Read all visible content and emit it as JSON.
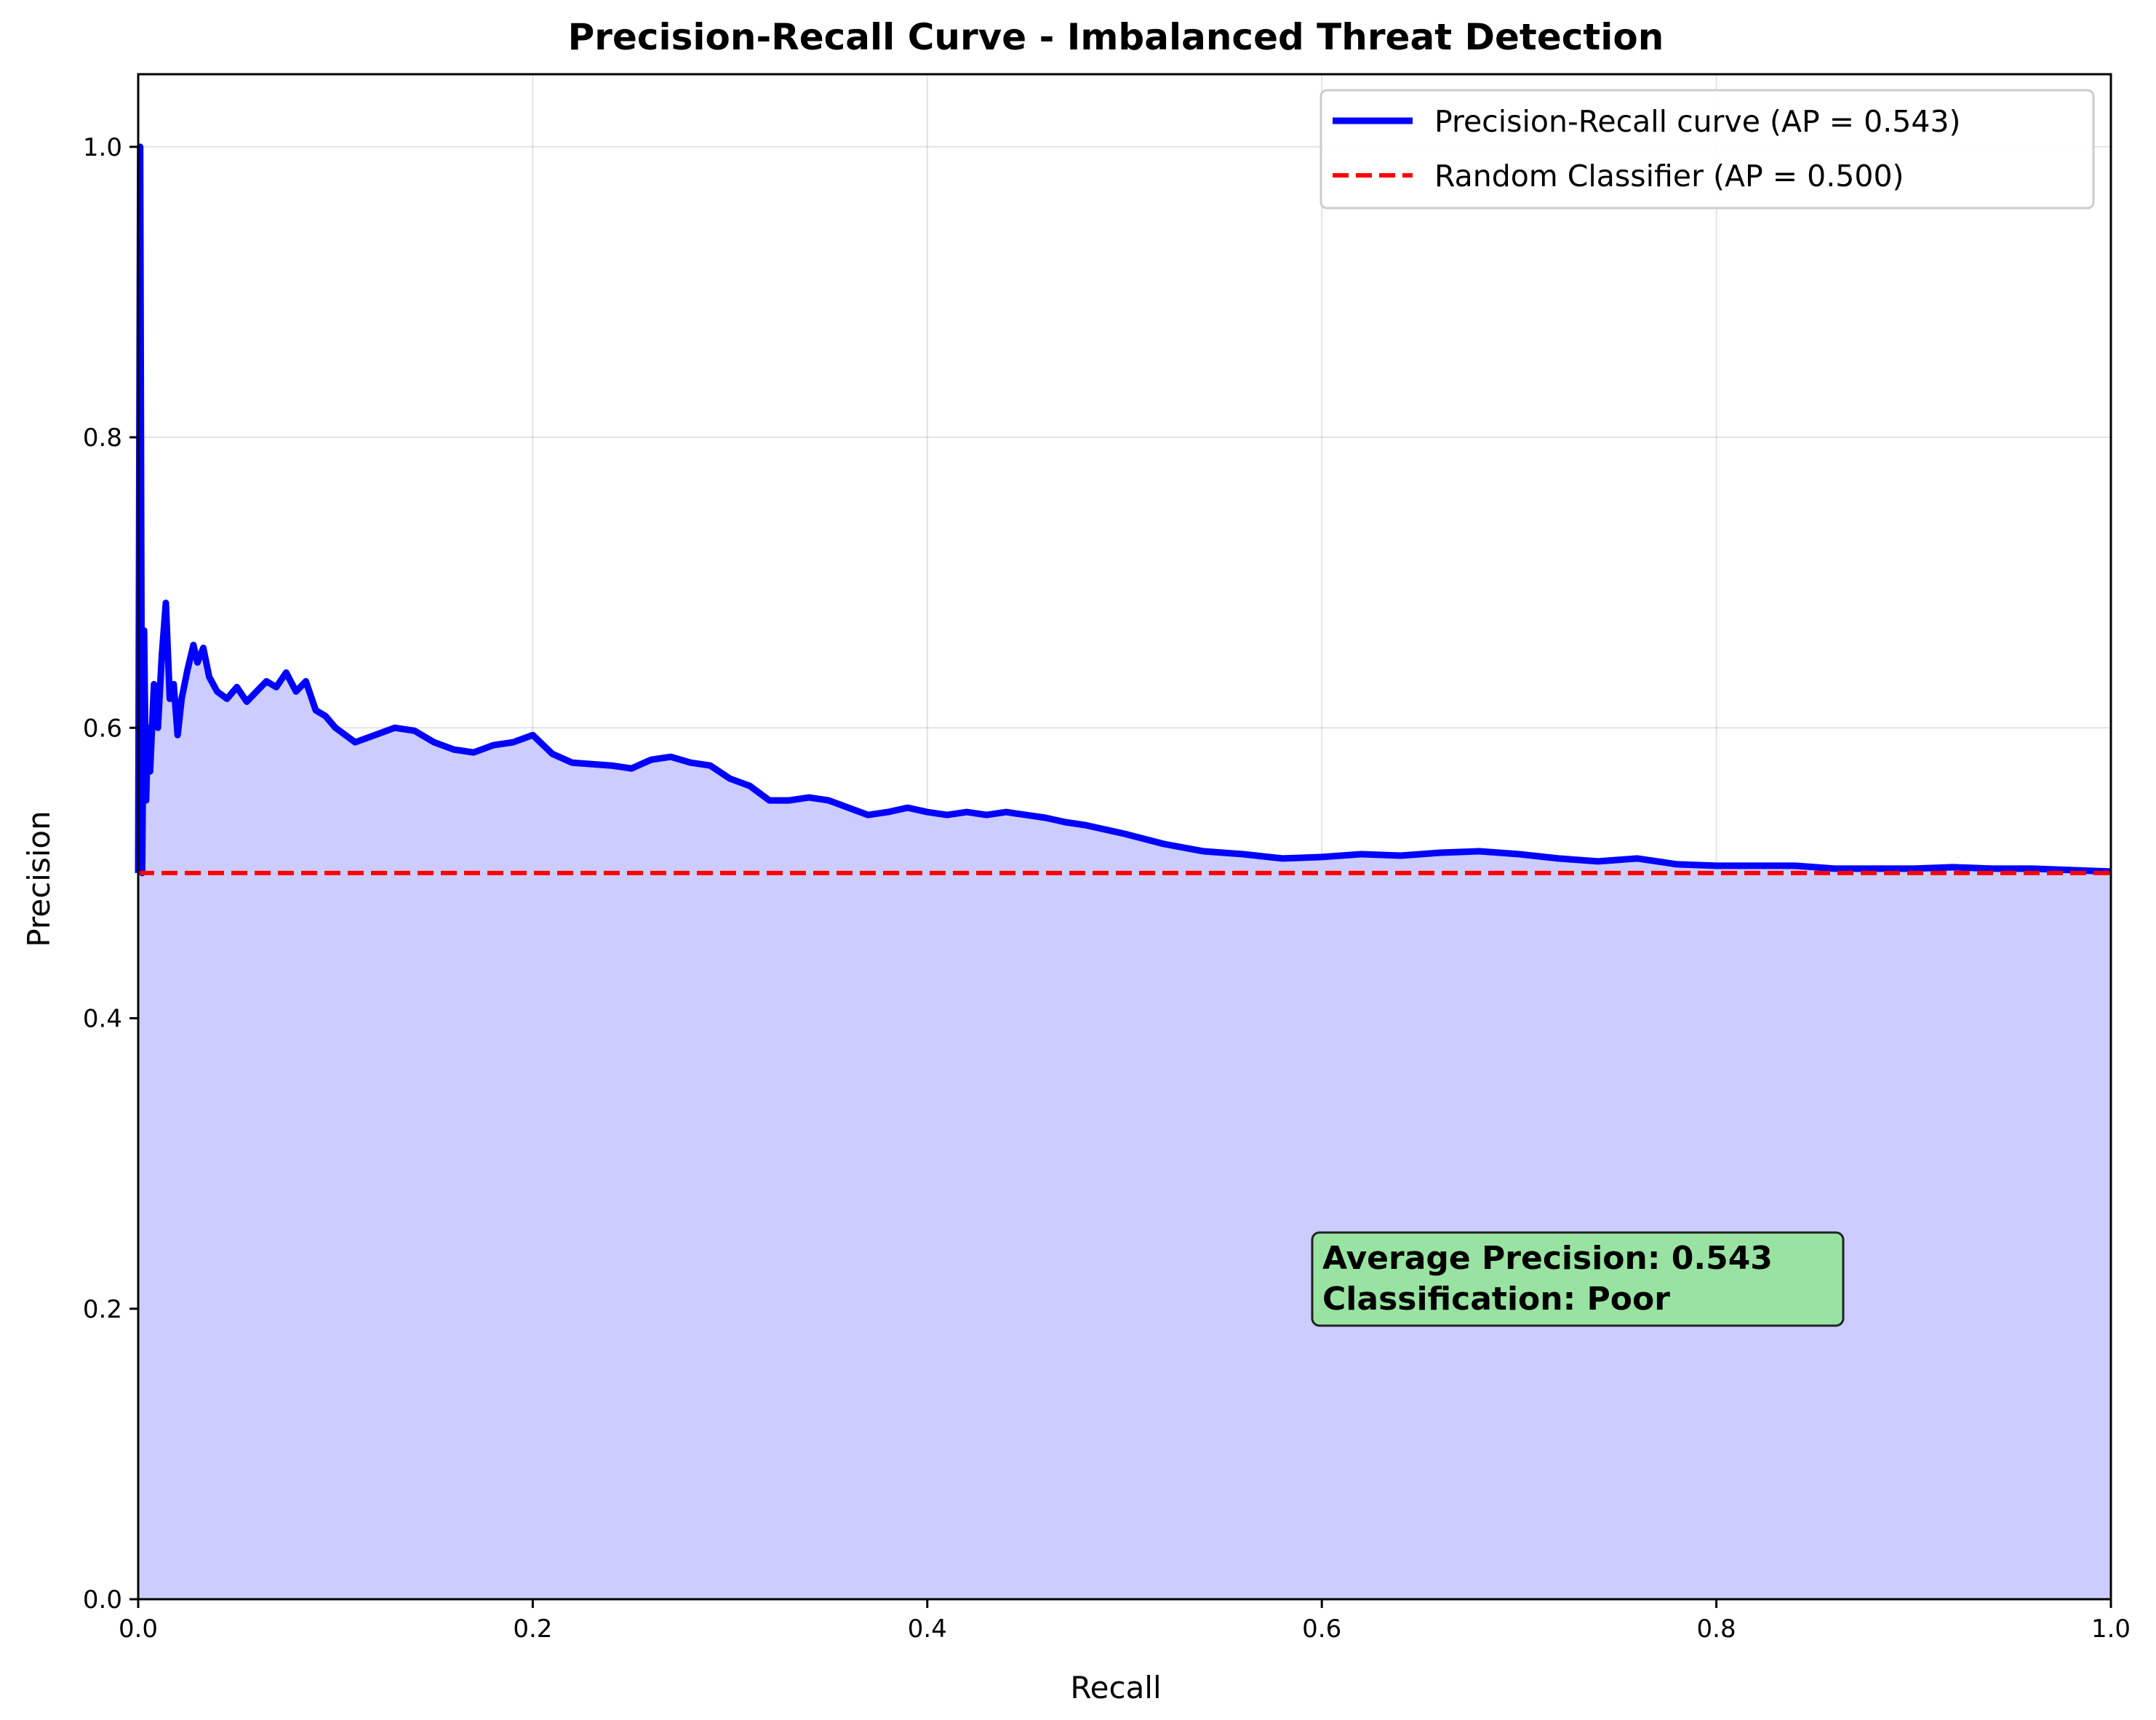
{
  "chart_data": {
    "type": "line",
    "title": "Precision-Recall Curve - Imbalanced Threat Detection",
    "xlabel": "Recall",
    "ylabel": "Precision",
    "xlim": [
      0.0,
      1.0
    ],
    "ylim": [
      0.0,
      1.05
    ],
    "xticks": [
      "0.0",
      "0.2",
      "0.4",
      "0.6",
      "0.8",
      "1.0"
    ],
    "yticks": [
      "0.0",
      "0.2",
      "0.4",
      "0.6",
      "0.8",
      "1.0"
    ],
    "grid": true,
    "legend_position": "top-right",
    "series": [
      {
        "name": "Precision-Recall curve (AP = 0.543)",
        "color": "#0000ff",
        "style": "solid",
        "fill_color": "#ccccff",
        "x": [
          0.0,
          0.001,
          0.002,
          0.003,
          0.004,
          0.005,
          0.006,
          0.008,
          0.01,
          0.012,
          0.014,
          0.016,
          0.018,
          0.02,
          0.022,
          0.025,
          0.028,
          0.03,
          0.033,
          0.036,
          0.04,
          0.045,
          0.05,
          0.055,
          0.06,
          0.065,
          0.07,
          0.075,
          0.08,
          0.085,
          0.09,
          0.095,
          0.1,
          0.11,
          0.12,
          0.13,
          0.14,
          0.15,
          0.16,
          0.17,
          0.18,
          0.19,
          0.2,
          0.21,
          0.22,
          0.23,
          0.24,
          0.25,
          0.26,
          0.27,
          0.28,
          0.29,
          0.3,
          0.31,
          0.32,
          0.33,
          0.34,
          0.35,
          0.36,
          0.37,
          0.38,
          0.39,
          0.4,
          0.41,
          0.42,
          0.43,
          0.44,
          0.45,
          0.46,
          0.47,
          0.48,
          0.49,
          0.5,
          0.52,
          0.54,
          0.56,
          0.58,
          0.6,
          0.62,
          0.64,
          0.66,
          0.68,
          0.7,
          0.72,
          0.74,
          0.76,
          0.78,
          0.8,
          0.82,
          0.84,
          0.86,
          0.88,
          0.9,
          0.92,
          0.94,
          0.96,
          0.98,
          1.0
        ],
        "y": [
          0.5,
          1.0,
          0.5,
          0.667,
          0.55,
          0.6,
          0.57,
          0.63,
          0.6,
          0.65,
          0.686,
          0.62,
          0.63,
          0.595,
          0.62,
          0.64,
          0.657,
          0.645,
          0.655,
          0.635,
          0.625,
          0.62,
          0.628,
          0.618,
          0.625,
          0.632,
          0.628,
          0.638,
          0.625,
          0.632,
          0.612,
          0.608,
          0.6,
          0.59,
          0.595,
          0.6,
          0.598,
          0.59,
          0.585,
          0.583,
          0.588,
          0.59,
          0.595,
          0.582,
          0.576,
          0.575,
          0.574,
          0.572,
          0.578,
          0.58,
          0.576,
          0.574,
          0.565,
          0.56,
          0.55,
          0.55,
          0.552,
          0.55,
          0.545,
          0.54,
          0.542,
          0.545,
          0.542,
          0.54,
          0.542,
          0.54,
          0.542,
          0.54,
          0.538,
          0.535,
          0.533,
          0.53,
          0.527,
          0.52,
          0.515,
          0.513,
          0.51,
          0.511,
          0.513,
          0.512,
          0.514,
          0.515,
          0.513,
          0.51,
          0.508,
          0.51,
          0.506,
          0.505,
          0.505,
          0.505,
          0.503,
          0.503,
          0.503,
          0.504,
          0.503,
          0.503,
          0.502,
          0.501
        ]
      },
      {
        "name": "Random Classifier (AP = 0.500)",
        "color": "#ff0000",
        "style": "dashed",
        "x": [
          0.0,
          1.0
        ],
        "y": [
          0.5,
          0.5
        ]
      }
    ],
    "annotation": {
      "lines": [
        "Average Precision: 0.543",
        "Classification: Poor"
      ],
      "box_color": "#98e3a1",
      "x": 0.6,
      "y": 0.2
    }
  }
}
